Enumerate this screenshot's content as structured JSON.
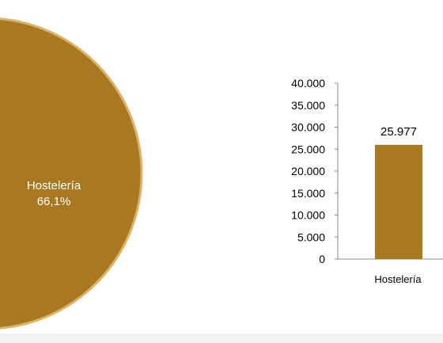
{
  "colors": {
    "slice_fill": "#A87920",
    "slice_edge": "#D9B46A",
    "bar_fill": "#A87920",
    "axis": "#888888",
    "tick_text": "#000000",
    "bottom_band": "#F2F2F2"
  },
  "chart_data": [
    {
      "type": "pie",
      "slices": [
        {
          "label": "Hostelería",
          "percent_label": "66,1%",
          "value": 66.1
        }
      ]
    },
    {
      "type": "bar",
      "categories": [
        "Hostelería"
      ],
      "values": [
        25977
      ],
      "value_labels": [
        "25.977"
      ],
      "ylim": [
        0,
        40000
      ],
      "yticks": [
        0,
        5000,
        10000,
        15000,
        20000,
        25000,
        30000,
        35000,
        40000
      ],
      "ytick_labels": [
        "0",
        "5.000",
        "10.000",
        "15.000",
        "20.000",
        "25.000",
        "30.000",
        "35.000",
        "40.000"
      ],
      "grid": false
    }
  ]
}
